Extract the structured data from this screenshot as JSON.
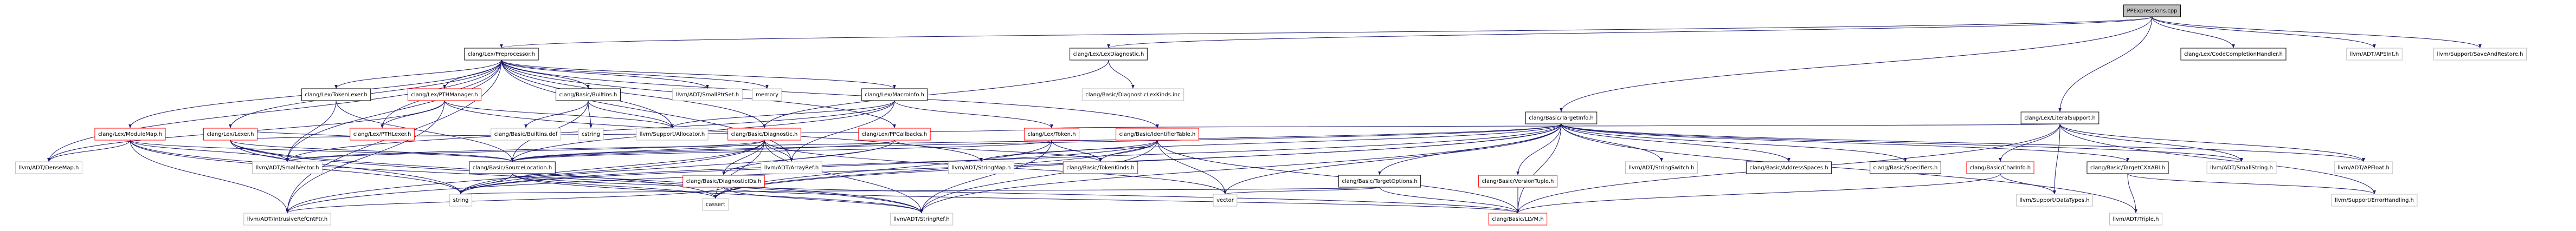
{
  "nodes": [
    {
      "label": "PPExpressions.cpp"
    },
    {
      "label": "clang/Lex/Preprocessor.h"
    },
    {
      "label": "clang/Lex/LexDiagnostic.h"
    },
    {
      "label": "clang/Lex/CodeCompletionHandler.h"
    },
    {
      "label": "llvm/ADT/APSInt.h"
    },
    {
      "label": "llvm/Support/SaveAndRestore.h"
    },
    {
      "label": "clang/Lex/TokenLexer.h"
    },
    {
      "label": "clang/Lex/PTHManager.h"
    },
    {
      "label": "clang/Basic/Builtins.h"
    },
    {
      "label": "llvm/ADT/SmallPtrSet.h"
    },
    {
      "label": "memory"
    },
    {
      "label": "clang/Lex/MacroInfo.h"
    },
    {
      "label": "clang/Basic/DiagnosticLexKinds.inc"
    },
    {
      "label": "clang/Basic/TargetInfo.h"
    },
    {
      "label": "clang/Lex/LiteralSupport.h"
    },
    {
      "label": "clang/Lex/ModuleMap.h"
    },
    {
      "label": "clang/Lex/Lexer.h"
    },
    {
      "label": "clang/Lex/PTHLexer.h"
    },
    {
      "label": "clang/Basic/Builtins.def"
    },
    {
      "label": "cstring"
    },
    {
      "label": "llvm/Support/Allocator.h"
    },
    {
      "label": "clang/Basic/Diagnostic.h"
    },
    {
      "label": "clang/Lex/PPCallbacks.h"
    },
    {
      "label": "clang/Lex/Token.h"
    },
    {
      "label": "clang/Basic/IdentifierTable.h"
    },
    {
      "label": "llvm/ADT/DenseMap.h"
    },
    {
      "label": "llvm/ADT/SmallVector.h"
    },
    {
      "label": "clang/Basic/SourceLocation.h"
    },
    {
      "label": "llvm/ADT/ArrayRef.h"
    },
    {
      "label": "llvm/ADT/StringMap.h"
    },
    {
      "label": "clang/Basic/TokenKinds.h"
    },
    {
      "label": "llvm/ADT/StringSwitch.h"
    },
    {
      "label": "clang/Basic/AddressSpaces.h"
    },
    {
      "label": "clang/Basic/Specifiers.h"
    },
    {
      "label": "clang/Basic/CharInfo.h"
    },
    {
      "label": "clang/Basic/TargetCXXABI.h"
    },
    {
      "label": "llvm/ADT/SmallString.h"
    },
    {
      "label": "llvm/ADT/APFloat.h"
    },
    {
      "label": "clang/Basic/DiagnosticIDs.h"
    },
    {
      "label": "clang/Basic/TargetOptions.h"
    },
    {
      "label": "clang/Basic/VersionTuple.h"
    },
    {
      "label": "string"
    },
    {
      "label": "cassert"
    },
    {
      "label": "vector"
    },
    {
      "label": "llvm/Support/DataTypes.h"
    },
    {
      "label": "llvm/Support/ErrorHandling.h"
    },
    {
      "label": "llvm/ADT/IntrusiveRefCntPtr.h"
    },
    {
      "label": "llvm/ADT/StringRef.h"
    },
    {
      "label": "clang/Basic/LLVM.h"
    },
    {
      "label": "llvm/ADT/Triple.h"
    }
  ]
}
